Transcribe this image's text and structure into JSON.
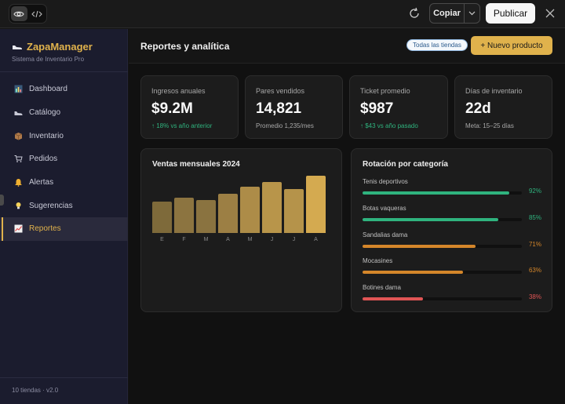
{
  "toolbar": {
    "copy_label": "Copiar",
    "publish_label": "Publicar"
  },
  "sidebar": {
    "brand": "ZapaManager",
    "subtitle": "Sistema de Inventario Pro",
    "items": [
      {
        "label": "Dashboard",
        "icon": "chart-icon"
      },
      {
        "label": "Catálogo",
        "icon": "shoe-icon"
      },
      {
        "label": "Inventario",
        "icon": "box-icon"
      },
      {
        "label": "Pedidos",
        "icon": "cart-icon"
      },
      {
        "label": "Alertas",
        "icon": "bell-icon"
      },
      {
        "label": "Sugerencias",
        "icon": "lightbulb-icon"
      },
      {
        "label": "Reportes",
        "icon": "trend-chart-icon",
        "active": true
      }
    ],
    "footer": "10 tiendas · v2.0"
  },
  "header": {
    "title": "Reportes y analítica",
    "store_filter": "Todas las tiendas",
    "new_product": "+ Nuevo producto"
  },
  "kpis": [
    {
      "label": "Ingresos anuales",
      "value": "$9.2M",
      "sub": "↑ 18% vs año anterior",
      "trend": "up"
    },
    {
      "label": "Pares vendidos",
      "value": "14,821",
      "sub": "Promedio 1,235/mes",
      "trend": "neutral"
    },
    {
      "label": "Ticket promedio",
      "value": "$987",
      "sub": "↑ $43 vs año pasado",
      "trend": "up"
    },
    {
      "label": "Días de inventario",
      "value": "22d",
      "sub": "Meta: 15–25 días",
      "trend": "neutral"
    }
  ],
  "chart_data": {
    "type": "bar",
    "title": "Ventas mensuales 2024",
    "categories": [
      "E",
      "F",
      "M",
      "A",
      "M",
      "J",
      "J",
      "A"
    ],
    "values": [
      54,
      61,
      57,
      68,
      80,
      88,
      76,
      99
    ],
    "ylim": [
      0,
      100
    ],
    "grid": false
  },
  "rotation": {
    "title": "Rotación por categoría",
    "items": [
      {
        "name": "Tenis deportivos",
        "pct": 92,
        "pct_label": "92%",
        "color": "#2fb37e"
      },
      {
        "name": "Botas vaqueras",
        "pct": 85,
        "pct_label": "85%",
        "color": "#2fb37e"
      },
      {
        "name": "Sandalias dama",
        "pct": 71,
        "pct_label": "71%",
        "color": "#d4862a"
      },
      {
        "name": "Mocasines",
        "pct": 63,
        "pct_label": "63%",
        "color": "#d4862a"
      },
      {
        "name": "Botines dama",
        "pct": 38,
        "pct_label": "38%",
        "color": "#e05555"
      }
    ]
  },
  "colors": {
    "accent": "#e0b24c",
    "positive": "#2fb37e",
    "warning": "#d4862a",
    "danger": "#e05555"
  }
}
